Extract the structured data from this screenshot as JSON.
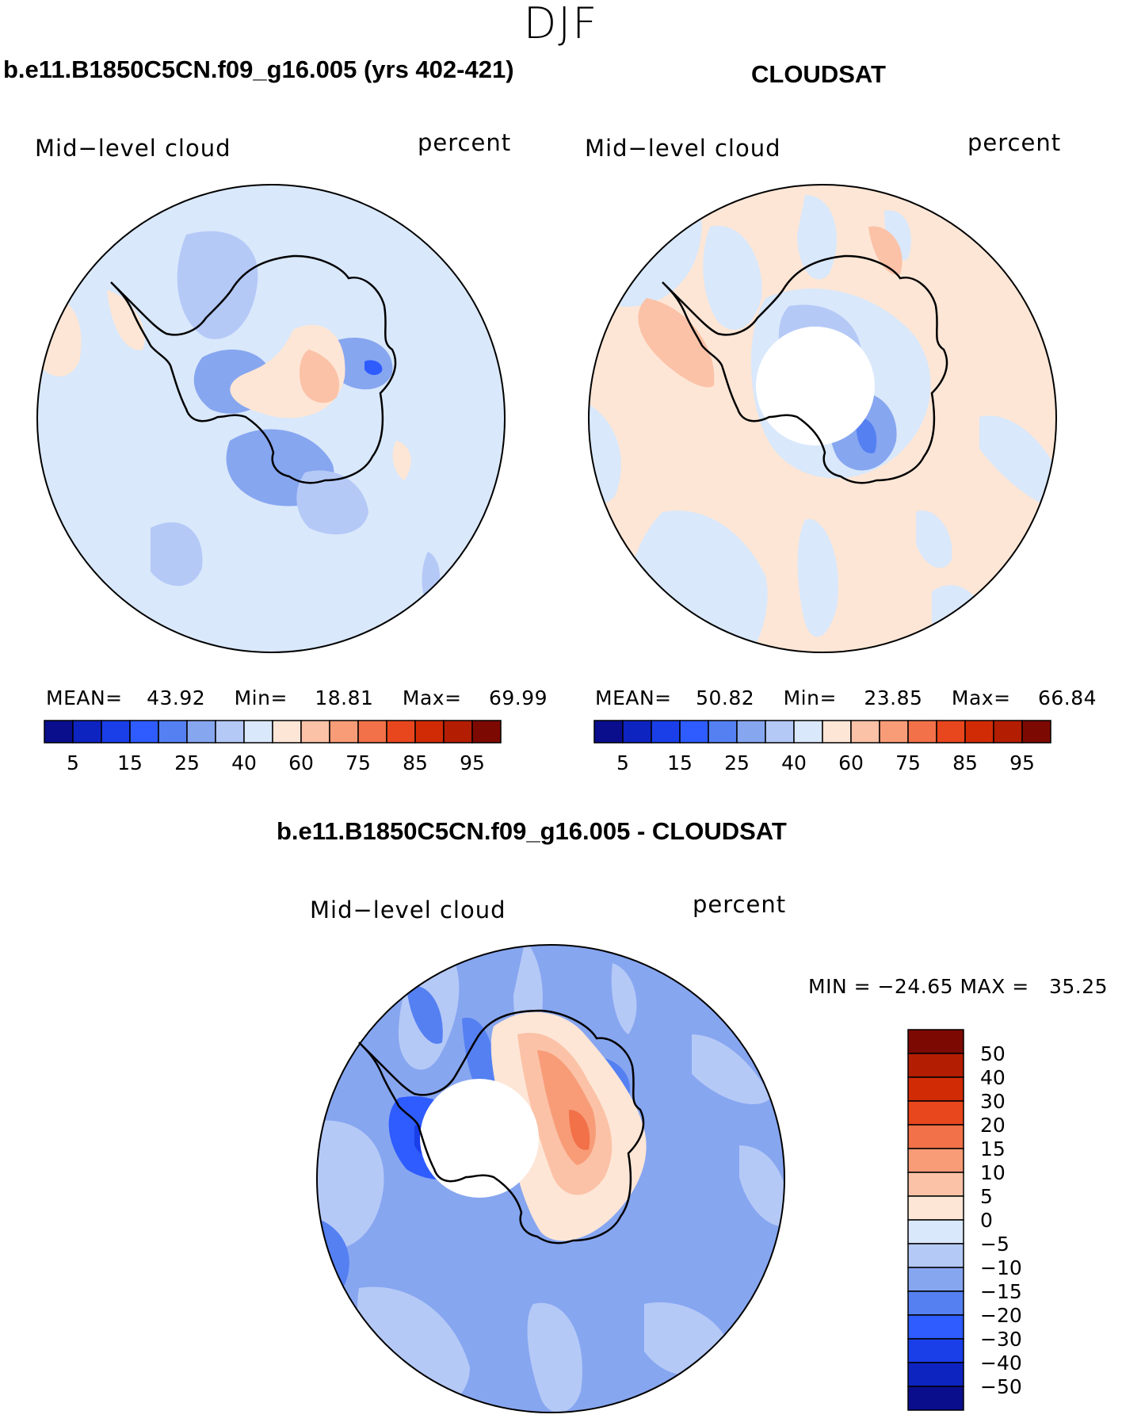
{
  "figure": {
    "season": "DJF"
  },
  "panels": [
    {
      "id": "model",
      "title": "b.e11.B1850C5CN.f09_g16.005 (yrs 402-421)",
      "variable": "Mid−level cloud",
      "units": "percent",
      "stats": {
        "mean_label": "MEAN=",
        "mean": "43.92",
        "min_label": "Min=",
        "min": "18.81",
        "max_label": "Max=",
        "max": "69.99"
      }
    },
    {
      "id": "obs",
      "title": "CLOUDSAT",
      "variable": "Mid−level cloud",
      "units": "percent",
      "stats": {
        "mean_label": "MEAN=",
        "mean": "50.82",
        "min_label": "Min=",
        "min": "23.85",
        "max_label": "Max=",
        "max": "66.84"
      }
    },
    {
      "id": "diff",
      "title": "b.e11.B1850C5CN.f09_g16.005 - CLOUDSAT",
      "variable": "Mid−level cloud",
      "units": "percent",
      "stats_text": "MIN = −24.65 MAX =   35.25"
    }
  ],
  "colorbar_abs": {
    "tick_labels": [
      "5",
      "15",
      "25",
      "40",
      "60",
      "75",
      "85",
      "95"
    ],
    "colors": [
      "#0a0e8c",
      "#0d24c0",
      "#1a3ee8",
      "#2e5cff",
      "#5580f2",
      "#87a6f0",
      "#b5c9f7",
      "#d9e8fb",
      "#fde6d6",
      "#fbc2a7",
      "#f89c78",
      "#f27148",
      "#e8461c",
      "#d12b06",
      "#b31d02",
      "#7d0a02"
    ]
  },
  "colorbar_diff": {
    "tick_labels": [
      "50",
      "40",
      "30",
      "20",
      "15",
      "10",
      "5",
      "0",
      "−5",
      "−10",
      "−15",
      "−20",
      "−30",
      "−40",
      "−50"
    ],
    "colors": [
      "#7d0a02",
      "#b31d02",
      "#d12b06",
      "#e8461c",
      "#f27148",
      "#f89c78",
      "#fbc2a7",
      "#fde6d6",
      "#d9e8fb",
      "#b5c9f7",
      "#87a6f0",
      "#5580f2",
      "#2e5cff",
      "#1a3ee8",
      "#0d24c0",
      "#0a0e8c"
    ]
  },
  "chart_data": [
    {
      "type": "heatmap",
      "projection": "south polar stereographic",
      "title": "b.e11.B1850C5CN.f09_g16.005 (yrs 402-421)",
      "variable": "Mid-level cloud",
      "units": "percent",
      "mean": 43.92,
      "min": 18.81,
      "max": 69.99,
      "contour_levels": [
        5,
        10,
        15,
        20,
        25,
        30,
        40,
        50,
        60,
        65,
        75,
        80,
        85,
        90,
        95
      ]
    },
    {
      "type": "heatmap",
      "projection": "south polar stereographic",
      "title": "CLOUDSAT",
      "variable": "Mid-level cloud",
      "units": "percent",
      "mean": 50.82,
      "min": 23.85,
      "max": 66.84,
      "contour_levels": [
        5,
        10,
        15,
        20,
        25,
        30,
        40,
        50,
        60,
        65,
        75,
        80,
        85,
        90,
        95
      ]
    },
    {
      "type": "heatmap",
      "projection": "south polar stereographic",
      "title": "b.e11.B1850C5CN.f09_g16.005 - CLOUDSAT",
      "variable": "Mid-level cloud",
      "units": "percent",
      "min": -24.65,
      "max": 35.25,
      "contour_levels": [
        -50,
        -40,
        -30,
        -20,
        -15,
        -10,
        -5,
        0,
        5,
        10,
        15,
        20,
        30,
        40,
        50
      ]
    }
  ]
}
